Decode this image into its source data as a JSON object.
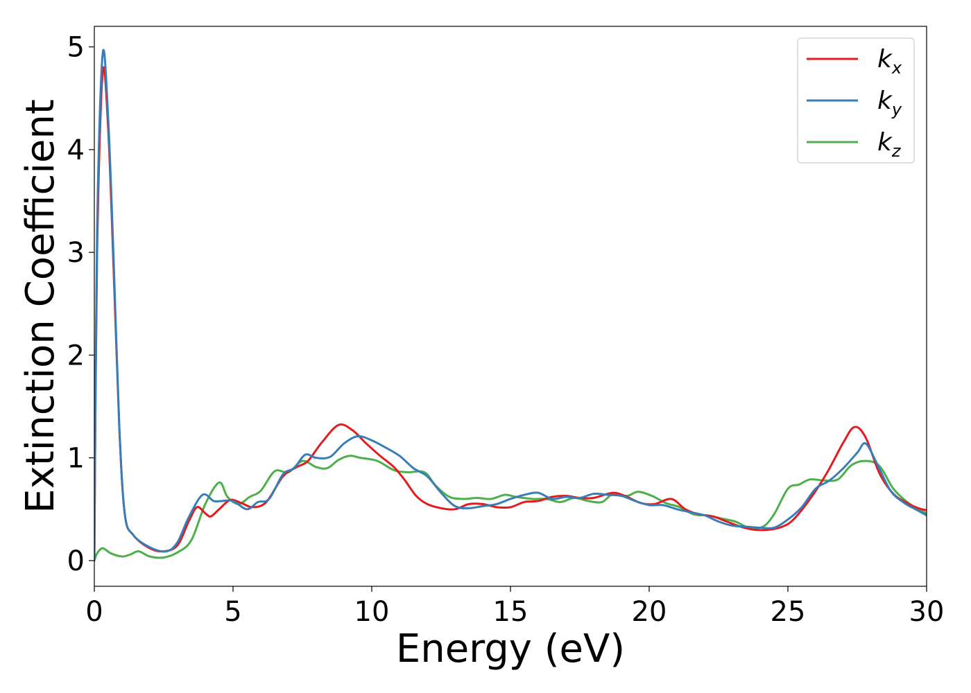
{
  "chart_data": {
    "type": "line",
    "title": "",
    "xlabel": "Energy (eV)",
    "ylabel": "Extinction Coefficient",
    "xlim": [
      0,
      30
    ],
    "ylim": [
      -0.25,
      5.2
    ],
    "xticks": [
      0,
      5,
      10,
      15,
      20,
      25,
      30
    ],
    "xtick_labels": [
      "0",
      "5",
      "10",
      "15",
      "20",
      "25",
      "30"
    ],
    "yticks": [
      0,
      1,
      2,
      3,
      4,
      5
    ],
    "ytick_labels": [
      "0",
      "1",
      "2",
      "3",
      "4",
      "5"
    ],
    "grid": false,
    "legend_position": "top-right",
    "series": [
      {
        "name": "k",
        "subscript": "x",
        "color": "#e41a1c",
        "points": [
          [
            0,
            0
          ],
          [
            0.1,
            3.0
          ],
          [
            0.3,
            4.75
          ],
          [
            0.5,
            4.2
          ],
          [
            0.7,
            2.8
          ],
          [
            0.9,
            1.3
          ],
          [
            1.1,
            0.45
          ],
          [
            1.4,
            0.25
          ],
          [
            2.0,
            0.12
          ],
          [
            2.5,
            0.09
          ],
          [
            3.0,
            0.15
          ],
          [
            3.4,
            0.38
          ],
          [
            3.7,
            0.52
          ],
          [
            4.0,
            0.46
          ],
          [
            4.2,
            0.43
          ],
          [
            4.5,
            0.5
          ],
          [
            4.9,
            0.59
          ],
          [
            5.3,
            0.56
          ],
          [
            5.7,
            0.52
          ],
          [
            6.2,
            0.57
          ],
          [
            6.8,
            0.82
          ],
          [
            7.3,
            0.91
          ],
          [
            7.7,
            0.97
          ],
          [
            8.2,
            1.15
          ],
          [
            8.8,
            1.32
          ],
          [
            9.3,
            1.27
          ],
          [
            9.8,
            1.14
          ],
          [
            10.3,
            1.02
          ],
          [
            10.8,
            0.91
          ],
          [
            11.2,
            0.78
          ],
          [
            11.6,
            0.63
          ],
          [
            12.0,
            0.55
          ],
          [
            12.5,
            0.51
          ],
          [
            13.0,
            0.5
          ],
          [
            13.5,
            0.55
          ],
          [
            14.0,
            0.55
          ],
          [
            14.5,
            0.52
          ],
          [
            15.0,
            0.52
          ],
          [
            15.5,
            0.57
          ],
          [
            16.0,
            0.58
          ],
          [
            16.5,
            0.62
          ],
          [
            17.0,
            0.63
          ],
          [
            17.5,
            0.61
          ],
          [
            18.0,
            0.61
          ],
          [
            18.7,
            0.66
          ],
          [
            19.2,
            0.62
          ],
          [
            19.7,
            0.56
          ],
          [
            20.2,
            0.55
          ],
          [
            20.8,
            0.6
          ],
          [
            21.3,
            0.5
          ],
          [
            21.8,
            0.45
          ],
          [
            22.3,
            0.43
          ],
          [
            22.8,
            0.38
          ],
          [
            23.3,
            0.33
          ],
          [
            23.8,
            0.3
          ],
          [
            24.3,
            0.3
          ],
          [
            24.8,
            0.33
          ],
          [
            25.2,
            0.4
          ],
          [
            25.8,
            0.6
          ],
          [
            26.4,
            0.85
          ],
          [
            27.0,
            1.15
          ],
          [
            27.4,
            1.3
          ],
          [
            27.8,
            1.2
          ],
          [
            28.3,
            0.85
          ],
          [
            28.8,
            0.65
          ],
          [
            29.3,
            0.56
          ],
          [
            29.7,
            0.51
          ],
          [
            30.0,
            0.49
          ]
        ]
      },
      {
        "name": "k",
        "subscript": "y",
        "color": "#377eb8",
        "points": [
          [
            0,
            0
          ],
          [
            0.1,
            3.2
          ],
          [
            0.3,
            4.93
          ],
          [
            0.5,
            4.3
          ],
          [
            0.7,
            2.9
          ],
          [
            0.9,
            1.3
          ],
          [
            1.1,
            0.45
          ],
          [
            1.4,
            0.25
          ],
          [
            2.0,
            0.13
          ],
          [
            2.6,
            0.09
          ],
          [
            3.0,
            0.18
          ],
          [
            3.4,
            0.42
          ],
          [
            3.9,
            0.64
          ],
          [
            4.3,
            0.58
          ],
          [
            4.6,
            0.58
          ],
          [
            5.0,
            0.58
          ],
          [
            5.5,
            0.5
          ],
          [
            5.9,
            0.57
          ],
          [
            6.3,
            0.6
          ],
          [
            6.8,
            0.84
          ],
          [
            7.2,
            0.9
          ],
          [
            7.6,
            1.03
          ],
          [
            8.0,
            1.0
          ],
          [
            8.5,
            1.01
          ],
          [
            9.0,
            1.14
          ],
          [
            9.5,
            1.21
          ],
          [
            10.0,
            1.17
          ],
          [
            10.5,
            1.1
          ],
          [
            11.0,
            1.02
          ],
          [
            11.5,
            0.9
          ],
          [
            12.0,
            0.82
          ],
          [
            12.5,
            0.66
          ],
          [
            13.0,
            0.53
          ],
          [
            13.5,
            0.51
          ],
          [
            14.0,
            0.53
          ],
          [
            14.5,
            0.55
          ],
          [
            15.0,
            0.6
          ],
          [
            15.5,
            0.64
          ],
          [
            16.0,
            0.66
          ],
          [
            16.5,
            0.6
          ],
          [
            17.0,
            0.62
          ],
          [
            17.5,
            0.61
          ],
          [
            18.0,
            0.65
          ],
          [
            18.5,
            0.64
          ],
          [
            19.0,
            0.63
          ],
          [
            19.5,
            0.58
          ],
          [
            20.0,
            0.54
          ],
          [
            20.5,
            0.54
          ],
          [
            21.0,
            0.5
          ],
          [
            21.5,
            0.47
          ],
          [
            22.0,
            0.44
          ],
          [
            22.5,
            0.38
          ],
          [
            23.0,
            0.34
          ],
          [
            23.5,
            0.33
          ],
          [
            24.0,
            0.32
          ],
          [
            24.5,
            0.32
          ],
          [
            25.0,
            0.4
          ],
          [
            25.5,
            0.52
          ],
          [
            26.0,
            0.7
          ],
          [
            26.5,
            0.78
          ],
          [
            27.0,
            0.9
          ],
          [
            27.5,
            1.05
          ],
          [
            27.8,
            1.14
          ],
          [
            28.2,
            0.95
          ],
          [
            28.7,
            0.68
          ],
          [
            29.2,
            0.56
          ],
          [
            29.6,
            0.5
          ],
          [
            30.0,
            0.44
          ]
        ]
      },
      {
        "name": "k",
        "subscript": "z",
        "color": "#4daf4a",
        "points": [
          [
            0,
            0
          ],
          [
            0.1,
            0.07
          ],
          [
            0.3,
            0.12
          ],
          [
            0.6,
            0.07
          ],
          [
            1.0,
            0.04
          ],
          [
            1.3,
            0.06
          ],
          [
            1.6,
            0.09
          ],
          [
            2.0,
            0.04
          ],
          [
            2.5,
            0.03
          ],
          [
            3.0,
            0.08
          ],
          [
            3.5,
            0.2
          ],
          [
            4.0,
            0.55
          ],
          [
            4.5,
            0.76
          ],
          [
            4.8,
            0.62
          ],
          [
            5.2,
            0.55
          ],
          [
            5.6,
            0.62
          ],
          [
            6.0,
            0.68
          ],
          [
            6.5,
            0.87
          ],
          [
            7.0,
            0.86
          ],
          [
            7.5,
            0.97
          ],
          [
            8.0,
            0.91
          ],
          [
            8.4,
            0.9
          ],
          [
            8.8,
            0.98
          ],
          [
            9.2,
            1.02
          ],
          [
            9.6,
            1.0
          ],
          [
            10.2,
            0.97
          ],
          [
            10.8,
            0.88
          ],
          [
            11.3,
            0.86
          ],
          [
            11.9,
            0.86
          ],
          [
            12.3,
            0.73
          ],
          [
            12.8,
            0.62
          ],
          [
            13.3,
            0.6
          ],
          [
            13.8,
            0.61
          ],
          [
            14.3,
            0.6
          ],
          [
            14.8,
            0.64
          ],
          [
            15.2,
            0.62
          ],
          [
            15.8,
            0.6
          ],
          [
            16.3,
            0.6
          ],
          [
            16.8,
            0.57
          ],
          [
            17.3,
            0.61
          ],
          [
            17.8,
            0.58
          ],
          [
            18.3,
            0.57
          ],
          [
            18.7,
            0.65
          ],
          [
            19.2,
            0.63
          ],
          [
            19.6,
            0.67
          ],
          [
            20.1,
            0.63
          ],
          [
            20.6,
            0.56
          ],
          [
            21.1,
            0.52
          ],
          [
            21.6,
            0.45
          ],
          [
            22.1,
            0.44
          ],
          [
            22.6,
            0.41
          ],
          [
            23.1,
            0.38
          ],
          [
            23.6,
            0.32
          ],
          [
            24.1,
            0.33
          ],
          [
            24.5,
            0.45
          ],
          [
            25.0,
            0.7
          ],
          [
            25.4,
            0.74
          ],
          [
            25.8,
            0.79
          ],
          [
            26.3,
            0.78
          ],
          [
            26.8,
            0.79
          ],
          [
            27.3,
            0.93
          ],
          [
            27.8,
            0.97
          ],
          [
            28.3,
            0.92
          ],
          [
            28.8,
            0.7
          ],
          [
            29.3,
            0.57
          ],
          [
            29.7,
            0.5
          ],
          [
            30.0,
            0.46
          ]
        ]
      }
    ]
  }
}
